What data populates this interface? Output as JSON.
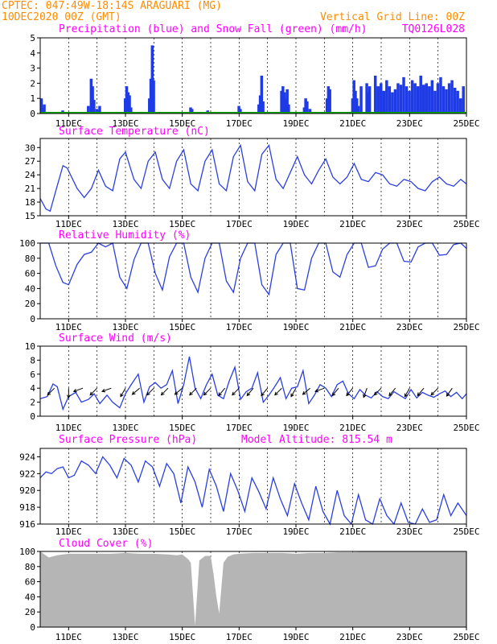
{
  "header": {
    "station": "CPTEC:  047:49W-18:14S  ARAGUARI (MG)",
    "run": "10DEC2020 00Z (GMT)",
    "grid_note": "Vertical Grid Line: 00Z",
    "model_code": "TQ0126L028"
  },
  "colors": {
    "header": "#ff8c00",
    "title": "#ff00ff",
    "line": "#2b3fe0",
    "rain": "#1f3be6",
    "snow": "#00aa00",
    "cloud": "#b5b5b5"
  },
  "x_ticks": [
    "11DEC",
    "13DEC",
    "15DEC",
    "17DEC",
    "19DEC",
    "21DEC",
    "23DEC",
    "25DEC"
  ],
  "chart_data": [
    {
      "type": "bar",
      "title": "Precipitation (blue) and Snow Fall (green) (mm/h)",
      "x_unit": "days since 10DEC2020 00Z",
      "ylim": [
        0,
        5
      ],
      "yticks": [
        0,
        1,
        2,
        3,
        4,
        5
      ],
      "series": [
        {
          "name": "Precipitation",
          "x": [
            0.05,
            0.1,
            0.15,
            0.8,
            1.7,
            1.8,
            1.85,
            1.9,
            2.0,
            2.05,
            2.1,
            3.0,
            3.05,
            3.1,
            3.15,
            3.2,
            3.85,
            3.9,
            3.95,
            4.0,
            5.3,
            5.35,
            5.9,
            7.0,
            7.05,
            7.7,
            7.75,
            7.8,
            7.85,
            8.5,
            8.55,
            8.6,
            8.65,
            8.7,
            8.75,
            9.3,
            9.35,
            9.4,
            9.5,
            10.1,
            10.15,
            10.2,
            11.0,
            11.05,
            11.1,
            11.15,
            11.2,
            11.3,
            11.5,
            11.55,
            11.6,
            11.8,
            11.9,
            12.0,
            12.1,
            12.2,
            12.3,
            12.4,
            12.5,
            12.6,
            12.7,
            12.8,
            12.9,
            13.0,
            13.1,
            13.2,
            13.3,
            13.4,
            13.5,
            13.6,
            13.7,
            13.8,
            13.9,
            14.0,
            14.1,
            14.2,
            14.3,
            14.4,
            14.5,
            14.6,
            14.7,
            14.8,
            14.9
          ],
          "values": [
            1.0,
            0.4,
            0.6,
            0.2,
            0.5,
            2.3,
            1.8,
            0.9,
            0.3,
            0.2,
            0.5,
            1.0,
            1.8,
            1.4,
            1.2,
            0.4,
            1.0,
            2.3,
            4.5,
            2.2,
            0.4,
            0.3,
            0.2,
            0.5,
            0.3,
            0.6,
            1.2,
            2.5,
            0.8,
            1.5,
            1.8,
            1.4,
            1.0,
            1.6,
            0.6,
            0.4,
            1.0,
            0.8,
            0.3,
            1.0,
            1.8,
            1.6,
            1.0,
            2.2,
            1.5,
            1.0,
            0.5,
            1.8,
            2.0,
            1.4,
            1.8,
            2.5,
            1.8,
            2.0,
            1.5,
            2.2,
            1.8,
            1.4,
            1.6,
            2.0,
            1.9,
            2.4,
            1.8,
            1.5,
            2.2,
            2.0,
            1.8,
            2.5,
            1.9,
            2.0,
            1.8,
            2.2,
            1.5,
            2.0,
            2.4,
            1.8,
            1.6,
            2.0,
            2.2,
            1.7,
            1.5,
            1.0,
            1.8
          ]
        },
        {
          "name": "Snow Fall",
          "x": [
            0,
            15
          ],
          "values": [
            0,
            0
          ]
        }
      ]
    },
    {
      "type": "line",
      "title": "Surface Temperature (nC)",
      "ylim": [
        15,
        32
      ],
      "yticks": [
        15,
        18,
        21,
        24,
        27,
        30
      ],
      "series": [
        {
          "name": "Temperature",
          "x": [
            0,
            0.2,
            0.35,
            0.55,
            0.8,
            0.95,
            1.3,
            1.55,
            1.8,
            2.05,
            2.3,
            2.55,
            2.8,
            3.0,
            3.3,
            3.55,
            3.8,
            4.05,
            4.3,
            4.55,
            4.8,
            5.05,
            5.3,
            5.55,
            5.8,
            6.05,
            6.3,
            6.55,
            6.8,
            7.05,
            7.3,
            7.55,
            7.8,
            8.05,
            8.3,
            8.55,
            8.8,
            9.05,
            9.3,
            9.55,
            9.8,
            10.05,
            10.3,
            10.55,
            10.8,
            11.05,
            11.3,
            11.55,
            11.8,
            12.05,
            12.3,
            12.55,
            12.8,
            13.05,
            13.3,
            13.55,
            13.8,
            14.05,
            14.3,
            14.55,
            14.8,
            15
          ],
          "values": [
            18.8,
            16.5,
            16.0,
            20.5,
            26.0,
            25.5,
            21.0,
            19.0,
            21.0,
            25.0,
            21.5,
            20.5,
            27.5,
            29.0,
            23.0,
            21.0,
            27.0,
            29.0,
            23.0,
            21.0,
            27.0,
            29.5,
            22.0,
            20.5,
            27.0,
            29.5,
            22.0,
            20.5,
            28.0,
            30.5,
            22.5,
            20.5,
            28.5,
            30.5,
            23.0,
            21.0,
            24.5,
            28.0,
            24.0,
            22.0,
            25.0,
            27.5,
            23.5,
            22.0,
            23.5,
            26.5,
            23.0,
            22.5,
            24.5,
            24.0,
            22.0,
            21.5,
            23.0,
            22.5,
            21.0,
            20.5,
            22.5,
            23.5,
            22.0,
            21.5,
            23.0,
            22.0
          ]
        }
      ]
    },
    {
      "type": "line",
      "title": "Relative Humidity (%)",
      "ylim": [
        0,
        100
      ],
      "yticks": [
        0,
        20,
        40,
        60,
        80,
        100
      ],
      "series": [
        {
          "name": "Relative Humidity",
          "x": [
            0,
            0.3,
            0.55,
            0.8,
            1.0,
            1.3,
            1.55,
            1.8,
            2.05,
            2.3,
            2.55,
            2.8,
            3.05,
            3.3,
            3.55,
            3.8,
            4.05,
            4.3,
            4.55,
            4.8,
            5.05,
            5.3,
            5.55,
            5.8,
            6.05,
            6.3,
            6.55,
            6.8,
            7.05,
            7.3,
            7.55,
            7.8,
            8.05,
            8.3,
            8.55,
            8.8,
            9.05,
            9.3,
            9.55,
            9.8,
            10.05,
            10.3,
            10.55,
            10.8,
            11.05,
            11.3,
            11.55,
            11.8,
            12.05,
            12.3,
            12.55,
            12.8,
            13.05,
            13.3,
            13.55,
            13.8,
            14.05,
            14.3,
            14.55,
            14.8,
            15
          ],
          "values": [
            100,
            100,
            70,
            48,
            45,
            72,
            85,
            88,
            100,
            95,
            100,
            55,
            40,
            78,
            100,
            100,
            60,
            38,
            82,
            100,
            100,
            55,
            35,
            80,
            100,
            100,
            50,
            35,
            80,
            100,
            100,
            45,
            32,
            85,
            100,
            100,
            40,
            38,
            80,
            100,
            100,
            62,
            55,
            85,
            100,
            100,
            68,
            70,
            92,
            100,
            100,
            76,
            75,
            95,
            100,
            100,
            84,
            85,
            98,
            100,
            93
          ]
        }
      ]
    },
    {
      "type": "line",
      "title": "Surface Wind (m/s)",
      "ylim": [
        0,
        10
      ],
      "yticks": [
        0,
        2,
        4,
        6,
        8,
        10
      ],
      "series": [
        {
          "name": "Wind speed",
          "x": [
            0,
            0.25,
            0.45,
            0.6,
            0.8,
            1.0,
            1.25,
            1.45,
            1.7,
            1.9,
            2.1,
            2.35,
            2.55,
            2.8,
            3.0,
            3.2,
            3.45,
            3.65,
            3.85,
            4.05,
            4.25,
            4.45,
            4.65,
            4.85,
            5.05,
            5.25,
            5.45,
            5.65,
            5.85,
            6.05,
            6.25,
            6.45,
            6.65,
            6.85,
            7.05,
            7.25,
            7.45,
            7.65,
            7.85,
            8.05,
            8.25,
            8.45,
            8.65,
            8.85,
            9.05,
            9.25,
            9.45,
            9.65,
            9.85,
            10.05,
            10.25,
            10.45,
            10.65,
            10.85,
            11.05,
            11.25,
            11.45,
            11.65,
            11.85,
            12.05,
            12.25,
            12.45,
            12.65,
            12.85,
            13.05,
            13.25,
            13.45,
            13.65,
            13.85,
            14.05,
            14.25,
            14.45,
            14.65,
            14.85,
            15
          ],
          "values": [
            2.5,
            2.8,
            4.6,
            4.2,
            1.0,
            2.8,
            3.4,
            2.0,
            2.4,
            3.2,
            1.8,
            3.0,
            2.0,
            1.2,
            3.2,
            4.5,
            6.0,
            2.0,
            4.2,
            4.8,
            4.0,
            4.5,
            6.5,
            1.8,
            4.5,
            8.5,
            4.0,
            2.5,
            4.5,
            6.0,
            3.0,
            2.5,
            5.0,
            7.0,
            2.4,
            3.5,
            4.0,
            6.2,
            2.0,
            3.0,
            4.2,
            5.5,
            2.5,
            4.0,
            4.2,
            6.5,
            1.8,
            3.0,
            4.5,
            4.0,
            2.8,
            4.5,
            5.0,
            3.2,
            2.5,
            3.8,
            3.0,
            2.6,
            3.5,
            2.8,
            2.5,
            3.5,
            3.0,
            2.5,
            3.8,
            2.6,
            3.4,
            3.0,
            2.7,
            3.2,
            3.6,
            2.8,
            3.4,
            2.5,
            3.2
          ]
        },
        {
          "name": "Wind direction (arrows)",
          "x": [
            0.5,
            1.0,
            1.5,
            2.0,
            2.5,
            3.0,
            3.5,
            4.0,
            4.5,
            5.0,
            5.5,
            6.0,
            6.5,
            7.0,
            7.5,
            8.0,
            8.5,
            9.0,
            9.5,
            10.0,
            10.5,
            11.0,
            11.5,
            12.0,
            12.5,
            13.0,
            13.5,
            14.0,
            14.5
          ],
          "dirs_deg": [
            225,
            180,
            250,
            225,
            250,
            210,
            230,
            225,
            225,
            230,
            225,
            225,
            220,
            225,
            220,
            220,
            225,
            210,
            230,
            250,
            220,
            220,
            200,
            225,
            220,
            210,
            220,
            225,
            215
          ]
        }
      ]
    },
    {
      "type": "line",
      "title": "Surface Pressure (hPa)",
      "subtitle": "Model Altitude: 815.54 m",
      "ylim": [
        916,
        925
      ],
      "yticks": [
        916,
        918,
        920,
        922,
        924
      ],
      "series": [
        {
          "name": "Surface Pressure",
          "x": [
            0,
            0.2,
            0.4,
            0.6,
            0.8,
            1.0,
            1.2,
            1.45,
            1.7,
            1.95,
            2.2,
            2.45,
            2.7,
            2.95,
            3.2,
            3.45,
            3.7,
            3.95,
            4.2,
            4.45,
            4.7,
            4.95,
            5.2,
            5.45,
            5.7,
            5.95,
            6.2,
            6.45,
            6.7,
            6.95,
            7.2,
            7.45,
            7.7,
            7.95,
            8.2,
            8.45,
            8.7,
            8.95,
            9.2,
            9.45,
            9.7,
            9.95,
            10.2,
            10.45,
            10.7,
            10.95,
            11.2,
            11.45,
            11.7,
            11.95,
            12.2,
            12.45,
            12.7,
            12.95,
            13.2,
            13.45,
            13.7,
            13.95,
            14.2,
            14.45,
            14.7,
            15
          ],
          "values": [
            921.5,
            922.2,
            922.0,
            922.6,
            922.8,
            921.5,
            921.8,
            923.5,
            923.0,
            922.0,
            924.0,
            923.0,
            921.5,
            923.8,
            923.0,
            921.0,
            923.5,
            922.8,
            920.5,
            923.2,
            922.0,
            918.5,
            922.8,
            921.0,
            918.0,
            922.5,
            920.5,
            917.5,
            922.0,
            920.0,
            917.5,
            921.5,
            919.8,
            917.8,
            921.5,
            919.0,
            917.0,
            920.8,
            918.5,
            916.5,
            920.5,
            917.5,
            916.0,
            920.0,
            917.0,
            916.0,
            919.5,
            916.5,
            916.0,
            919.0,
            917.0,
            916.0,
            918.5,
            916.2,
            916.0,
            917.8,
            916.2,
            916.5,
            919.5,
            917.0,
            918.5,
            917.0
          ]
        }
      ]
    },
    {
      "type": "area",
      "title": "Cloud Cover (%)",
      "ylim": [
        0,
        100
      ],
      "yticks": [
        0,
        20,
        40,
        60,
        80,
        100
      ],
      "series": [
        {
          "name": "Cloud Cover",
          "x": [
            0,
            0.3,
            0.6,
            1.0,
            1.5,
            2.0,
            2.5,
            3.0,
            3.5,
            4.0,
            4.5,
            4.8,
            5.0,
            5.2,
            5.3,
            5.45,
            5.6,
            5.8,
            6.0,
            6.1,
            6.2,
            6.3,
            6.45,
            6.6,
            6.8,
            7.0,
            7.5,
            8.0,
            8.5,
            9.0,
            9.5,
            10.0,
            10.5,
            11.0,
            11.5,
            12.0,
            12.5,
            13.0,
            13.5,
            14.0,
            14.5,
            15
          ],
          "values": [
            100,
            92,
            95,
            97,
            97,
            97,
            97,
            98,
            97,
            97,
            96,
            95,
            96,
            90,
            85,
            2,
            88,
            94,
            94,
            70,
            40,
            18,
            85,
            93,
            96,
            97,
            98,
            98,
            98,
            97,
            98,
            98,
            99,
            99,
            100,
            100,
            100,
            100,
            100,
            100,
            100,
            100
          ]
        }
      ]
    }
  ]
}
